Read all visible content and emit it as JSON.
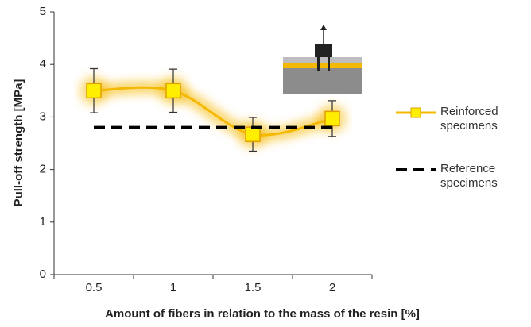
{
  "chart_data": {
    "type": "line",
    "x_label": "Amount of fibers in relation to the mass of the resin [%]",
    "y_label": "Pull-off strength [MPa]",
    "categories": [
      "0.5",
      "1",
      "1.5",
      "2"
    ],
    "series": [
      {
        "name": "Reinforced specimens",
        "color": "#f5b800",
        "values": [
          3.5,
          3.5,
          2.67,
          2.97
        ],
        "errors": [
          0.42,
          0.41,
          0.32,
          0.34
        ],
        "style": "solid"
      },
      {
        "name": "Reference specimens",
        "color": "#000000",
        "values": [
          2.8,
          2.8,
          2.8,
          2.8
        ],
        "style": "dashed"
      }
    ],
    "ylim": [
      0,
      5
    ],
    "yticks": [
      0,
      1,
      2,
      3,
      4,
      5
    ]
  }
}
